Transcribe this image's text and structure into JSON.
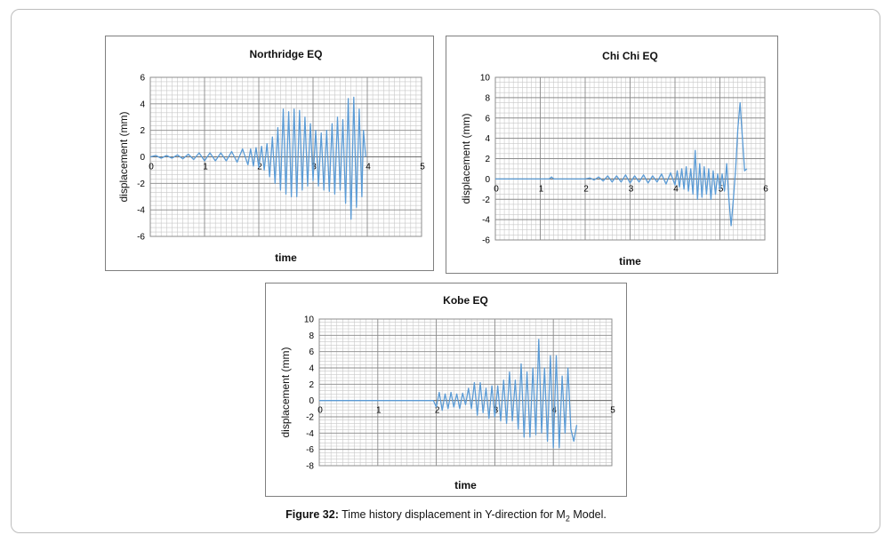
{
  "caption": {
    "label": "Figure 32:",
    "text_before_sub": " Time history displacement in Y-direction for M",
    "subscript": "2",
    "text_after_sub": " Model."
  },
  "colors": {
    "series": "#5b9bd5",
    "grid_major": "#8c8c8c",
    "grid_minor": "#c8c8c8",
    "axis_text": "#000000"
  },
  "chart_data": [
    {
      "type": "line",
      "title": "Northridge EQ",
      "xlabel": "time",
      "ylabel": "displacement (mm)",
      "xlim": [
        0,
        5
      ],
      "ylim": [
        -6,
        6
      ],
      "x_ticks": [
        0,
        1,
        2,
        3,
        4,
        5
      ],
      "y_ticks": [
        -6,
        -4,
        -2,
        0,
        2,
        4,
        6
      ],
      "grid": true,
      "legend": "none",
      "series": [
        {
          "x": [
            0,
            0.1,
            0.2,
            0.3,
            0.4,
            0.5,
            0.6,
            0.7,
            0.8,
            0.9,
            1,
            1.1,
            1.2,
            1.3,
            1.4,
            1.5,
            1.6,
            1.7,
            1.8,
            1.85,
            1.9,
            1.95,
            2,
            2.05,
            2.1,
            2.15,
            2.2,
            2.25,
            2.3,
            2.35,
            2.4,
            2.45,
            2.5,
            2.55,
            2.6,
            2.65,
            2.7,
            2.75,
            2.8,
            2.85,
            2.9,
            2.95,
            3,
            3.05,
            3.1,
            3.15,
            3.2,
            3.25,
            3.3,
            3.35,
            3.4,
            3.45,
            3.5,
            3.55,
            3.6,
            3.65,
            3.7,
            3.75,
            3.8,
            3.85,
            3.9,
            3.93,
            3.97
          ],
          "y": [
            0,
            0.1,
            -0.1,
            0.1,
            -0.1,
            0.15,
            -0.15,
            0.2,
            -0.2,
            0.3,
            -0.3,
            0.3,
            -0.3,
            0.3,
            -0.3,
            0.4,
            -0.4,
            0.6,
            -0.6,
            0.6,
            -0.7,
            0.7,
            -0.8,
            0.8,
            -1,
            1,
            -1.5,
            1.5,
            -2,
            2.2,
            -2.5,
            3.6,
            -2.8,
            3.4,
            -3,
            3.6,
            -3,
            3.5,
            -2.5,
            3,
            -2.2,
            2.5,
            -1.8,
            2,
            -2.2,
            1.8,
            -2.5,
            2,
            -2.6,
            2.5,
            -2.8,
            3,
            -2.5,
            2.8,
            -3.5,
            4.4,
            -4.7,
            4.5,
            -3.8,
            3.6,
            -3,
            2,
            0
          ]
        }
      ]
    },
    {
      "type": "line",
      "title": "Chi Chi EQ",
      "xlabel": "time",
      "ylabel": "displacement (mm)",
      "xlim": [
        0,
        6
      ],
      "ylim": [
        -6,
        10
      ],
      "x_ticks": [
        0,
        1,
        2,
        3,
        4,
        5,
        6
      ],
      "y_ticks": [
        -6,
        -4,
        -2,
        0,
        2,
        4,
        6,
        8,
        10
      ],
      "grid": true,
      "legend": "none",
      "series": [
        {
          "x": [
            0,
            1.2,
            1.25,
            1.3,
            2,
            2.1,
            2.2,
            2.3,
            2.4,
            2.5,
            2.6,
            2.7,
            2.8,
            2.9,
            3,
            3.1,
            3.2,
            3.3,
            3.4,
            3.5,
            3.6,
            3.7,
            3.8,
            3.9,
            4,
            4.05,
            4.1,
            4.15,
            4.2,
            4.25,
            4.3,
            4.35,
            4.4,
            4.45,
            4.5,
            4.55,
            4.6,
            4.65,
            4.7,
            4.75,
            4.8,
            4.85,
            4.9,
            4.95,
            5,
            5.05,
            5.1,
            5.15,
            5.2,
            5.25,
            5.3,
            5.35,
            5.4,
            5.45,
            5.5,
            5.55,
            5.6
          ],
          "y": [
            0,
            0,
            0.2,
            0,
            0,
            0.1,
            -0.1,
            0.2,
            -0.2,
            0.3,
            -0.3,
            0.3,
            -0.3,
            0.4,
            -0.4,
            0.3,
            -0.3,
            0.4,
            -0.4,
            0.3,
            -0.3,
            0.5,
            -0.5,
            0.6,
            -0.6,
            0.8,
            -0.8,
            1,
            -1,
            1.2,
            -1.2,
            1,
            -1.5,
            2.8,
            -2,
            1.5,
            -1.8,
            1.2,
            -1.5,
            1,
            -2,
            0.8,
            -1.5,
            0.5,
            -1,
            0.5,
            -1.2,
            1.5,
            -2,
            -4.6,
            -2,
            1,
            5,
            7.5,
            4,
            0.8,
            1
          ]
        }
      ]
    },
    {
      "type": "line",
      "title": "Kobe EQ",
      "xlabel": "time",
      "ylabel": "displacement (mm)",
      "xlim": [
        0,
        5
      ],
      "ylim": [
        -8,
        10
      ],
      "x_ticks": [
        0,
        1,
        2,
        3,
        4,
        5
      ],
      "y_ticks": [
        -8,
        -6,
        -4,
        -2,
        0,
        2,
        4,
        6,
        8,
        10
      ],
      "grid": true,
      "legend": "none",
      "series": [
        {
          "x": [
            0,
            1.95,
            2,
            2.05,
            2.1,
            2.15,
            2.2,
            2.25,
            2.3,
            2.35,
            2.4,
            2.45,
            2.5,
            2.55,
            2.6,
            2.65,
            2.7,
            2.75,
            2.8,
            2.85,
            2.9,
            2.95,
            3,
            3.05,
            3.1,
            3.15,
            3.2,
            3.25,
            3.3,
            3.35,
            3.4,
            3.45,
            3.5,
            3.55,
            3.6,
            3.65,
            3.7,
            3.75,
            3.8,
            3.85,
            3.9,
            3.95,
            4,
            4.05,
            4.1,
            4.15,
            4.2,
            4.25,
            4.3,
            4.35,
            4.4
          ],
          "y": [
            0,
            0,
            -0.8,
            1,
            -1.2,
            0.8,
            -1,
            1,
            -0.8,
            0.8,
            -1,
            0.9,
            -0.5,
            1.5,
            -1,
            2.2,
            -1.8,
            2.2,
            -1.5,
            1.5,
            -2.2,
            1.8,
            -2,
            1.8,
            -2.5,
            2.5,
            -2.8,
            3.5,
            -2.5,
            2.5,
            -3.5,
            4.5,
            -4.5,
            3.5,
            -4.5,
            4,
            -4.2,
            7.5,
            -4,
            4,
            -5,
            5.5,
            -5.8,
            5.5,
            -5.8,
            3,
            -4,
            4,
            -3.5,
            -5,
            -3
          ]
        }
      ]
    }
  ]
}
